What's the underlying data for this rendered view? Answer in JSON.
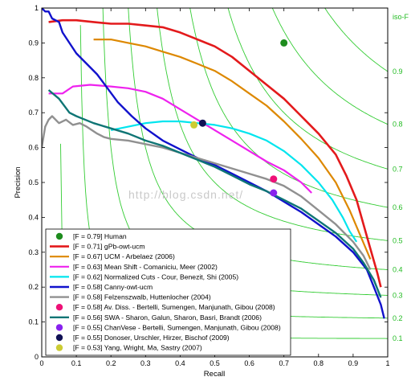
{
  "chart_data": {
    "type": "line",
    "xlabel": "Recall",
    "ylabel": "Precision",
    "xlim": [
      0,
      1
    ],
    "ylim": [
      0,
      1
    ],
    "xticks": [
      "0",
      "0.1",
      "0.2",
      "0.3",
      "0.4",
      "0.5",
      "0.6",
      "0.7",
      "0.8",
      "0.9",
      "1"
    ],
    "yticks": [
      "0",
      "0.1",
      "0.2",
      "0.3",
      "0.4",
      "0.5",
      "0.6",
      "0.7",
      "0.8",
      "0.9",
      "1"
    ],
    "grid": false,
    "legend_position": "bottom-left",
    "iso_title": "iso-F",
    "iso_f": [
      {
        "f": 0.1,
        "label": "0.1"
      },
      {
        "f": 0.2,
        "label": "0.2"
      },
      {
        "f": 0.3,
        "label": "0.3"
      },
      {
        "f": 0.4,
        "label": "0.4"
      },
      {
        "f": 0.5,
        "label": "0.5"
      },
      {
        "f": 0.6,
        "label": "0.6"
      },
      {
        "f": 0.7,
        "label": "0.7"
      },
      {
        "f": 0.8,
        "label": "0.8"
      },
      {
        "f": 0.9,
        "label": "0.9"
      }
    ],
    "watermark": "http://blog.csdn.net/",
    "series": [
      {
        "name": "[F = 0.79] Human",
        "kind": "point",
        "color": "#1e8c1e",
        "points": [
          [
            0.7,
            0.9
          ]
        ]
      },
      {
        "name": "[F = 0.71] gPb-owt-ucm",
        "kind": "line",
        "color": "#e31a1c",
        "width": 2.6,
        "points": [
          [
            0.02,
            0.96
          ],
          [
            0.06,
            0.965
          ],
          [
            0.1,
            0.965
          ],
          [
            0.15,
            0.96
          ],
          [
            0.2,
            0.955
          ],
          [
            0.25,
            0.955
          ],
          [
            0.3,
            0.95
          ],
          [
            0.35,
            0.945
          ],
          [
            0.4,
            0.93
          ],
          [
            0.45,
            0.91
          ],
          [
            0.5,
            0.89
          ],
          [
            0.55,
            0.86
          ],
          [
            0.6,
            0.82
          ],
          [
            0.65,
            0.78
          ],
          [
            0.7,
            0.74
          ],
          [
            0.75,
            0.69
          ],
          [
            0.8,
            0.64
          ],
          [
            0.85,
            0.58
          ],
          [
            0.88,
            0.52
          ],
          [
            0.91,
            0.45
          ],
          [
            0.93,
            0.38
          ],
          [
            0.95,
            0.31
          ],
          [
            0.97,
            0.24
          ],
          [
            0.98,
            0.2
          ]
        ]
      },
      {
        "name": "[F = 0.67] UCM - Arbelaez (2006)",
        "kind": "line",
        "color": "#dd8800",
        "width": 2.2,
        "points": [
          [
            0.15,
            0.91
          ],
          [
            0.2,
            0.91
          ],
          [
            0.25,
            0.9
          ],
          [
            0.3,
            0.89
          ],
          [
            0.35,
            0.875
          ],
          [
            0.4,
            0.86
          ],
          [
            0.45,
            0.84
          ],
          [
            0.5,
            0.82
          ],
          [
            0.55,
            0.79
          ],
          [
            0.6,
            0.755
          ],
          [
            0.65,
            0.72
          ],
          [
            0.7,
            0.675
          ],
          [
            0.75,
            0.625
          ],
          [
            0.8,
            0.57
          ],
          [
            0.85,
            0.5
          ],
          [
            0.89,
            0.42
          ],
          [
            0.92,
            0.35
          ],
          [
            0.95,
            0.28
          ]
        ]
      },
      {
        "name": "[F = 0.63] Mean Shift - Comaniciu, Meer (2002)",
        "kind": "line",
        "color": "#ee22ee",
        "width": 2.2,
        "points": [
          [
            0.02,
            0.755
          ],
          [
            0.06,
            0.755
          ],
          [
            0.09,
            0.775
          ],
          [
            0.14,
            0.78
          ],
          [
            0.2,
            0.775
          ],
          [
            0.25,
            0.77
          ],
          [
            0.3,
            0.76
          ],
          [
            0.35,
            0.74
          ],
          [
            0.4,
            0.71
          ],
          [
            0.45,
            0.68
          ],
          [
            0.5,
            0.65
          ],
          [
            0.55,
            0.62
          ],
          [
            0.6,
            0.59
          ],
          [
            0.65,
            0.56
          ],
          [
            0.7,
            0.535
          ],
          [
            0.75,
            0.5
          ],
          [
            0.78,
            0.47
          ]
        ]
      },
      {
        "name": "[F = 0.62] Normalized Cuts - Cour, Benezit, Shi (2005)",
        "kind": "line",
        "color": "#00e5ee",
        "width": 2.2,
        "points": [
          [
            0.2,
            0.65
          ],
          [
            0.25,
            0.66
          ],
          [
            0.3,
            0.67
          ],
          [
            0.35,
            0.675
          ],
          [
            0.4,
            0.675
          ],
          [
            0.45,
            0.67
          ],
          [
            0.5,
            0.665
          ],
          [
            0.55,
            0.655
          ],
          [
            0.6,
            0.64
          ],
          [
            0.65,
            0.62
          ],
          [
            0.7,
            0.59
          ],
          [
            0.75,
            0.55
          ],
          [
            0.8,
            0.5
          ],
          [
            0.84,
            0.45
          ],
          [
            0.87,
            0.4
          ],
          [
            0.89,
            0.36
          ],
          [
            0.91,
            0.33
          ]
        ]
      },
      {
        "name": "[F = 0.58] Canny-owt-ucm",
        "kind": "line",
        "color": "#1111cc",
        "width": 2.4,
        "points": [
          [
            0.0,
            1.0
          ],
          [
            0.01,
            0.99
          ],
          [
            0.02,
            0.99
          ],
          [
            0.03,
            0.97
          ],
          [
            0.05,
            0.96
          ],
          [
            0.06,
            0.93
          ],
          [
            0.08,
            0.9
          ],
          [
            0.1,
            0.87
          ],
          [
            0.13,
            0.84
          ],
          [
            0.16,
            0.81
          ],
          [
            0.19,
            0.77
          ],
          [
            0.22,
            0.73
          ],
          [
            0.26,
            0.69
          ],
          [
            0.3,
            0.655
          ],
          [
            0.35,
            0.62
          ],
          [
            0.4,
            0.595
          ],
          [
            0.45,
            0.57
          ],
          [
            0.5,
            0.55
          ],
          [
            0.55,
            0.525
          ],
          [
            0.6,
            0.5
          ],
          [
            0.65,
            0.475
          ],
          [
            0.7,
            0.445
          ],
          [
            0.75,
            0.415
          ],
          [
            0.8,
            0.38
          ],
          [
            0.85,
            0.345
          ],
          [
            0.9,
            0.3
          ],
          [
            0.94,
            0.25
          ],
          [
            0.96,
            0.2
          ],
          [
            0.98,
            0.15
          ],
          [
            0.99,
            0.11
          ]
        ]
      },
      {
        "name": "[F = 0.58] Felzenszwalb, Huttenlocher (2004)",
        "kind": "line",
        "color": "#909090",
        "width": 2.4,
        "points": [
          [
            0.0,
            0.6
          ],
          [
            0.01,
            0.66
          ],
          [
            0.02,
            0.68
          ],
          [
            0.03,
            0.69
          ],
          [
            0.05,
            0.67
          ],
          [
            0.07,
            0.68
          ],
          [
            0.09,
            0.665
          ],
          [
            0.11,
            0.67
          ],
          [
            0.13,
            0.66
          ],
          [
            0.16,
            0.64
          ],
          [
            0.18,
            0.63
          ],
          [
            0.2,
            0.625
          ],
          [
            0.25,
            0.62
          ],
          [
            0.3,
            0.61
          ],
          [
            0.35,
            0.6
          ],
          [
            0.4,
            0.585
          ],
          [
            0.45,
            0.57
          ],
          [
            0.5,
            0.555
          ],
          [
            0.55,
            0.54
          ],
          [
            0.6,
            0.525
          ],
          [
            0.65,
            0.51
          ],
          [
            0.7,
            0.49
          ],
          [
            0.75,
            0.46
          ],
          [
            0.8,
            0.42
          ],
          [
            0.85,
            0.38
          ],
          [
            0.9,
            0.33
          ],
          [
            0.93,
            0.29
          ],
          [
            0.95,
            0.25
          ]
        ]
      },
      {
        "name": "[F = 0.58] Av. Diss. - Bertelli, Sumengen, Manjunath, Gibou (2008)",
        "kind": "point",
        "color": "#ee1177",
        "points": [
          [
            0.67,
            0.51
          ]
        ]
      },
      {
        "name": "[F = 0.56] SWA - Sharon, Galun, Sharon, Basri, Brandt (2006)",
        "kind": "line",
        "color": "#0f7575",
        "width": 2.4,
        "points": [
          [
            0.02,
            0.765
          ],
          [
            0.05,
            0.74
          ],
          [
            0.08,
            0.7
          ],
          [
            0.1,
            0.69
          ],
          [
            0.15,
            0.67
          ],
          [
            0.2,
            0.655
          ],
          [
            0.25,
            0.64
          ],
          [
            0.3,
            0.62
          ],
          [
            0.35,
            0.605
          ],
          [
            0.4,
            0.585
          ],
          [
            0.45,
            0.565
          ],
          [
            0.5,
            0.545
          ],
          [
            0.55,
            0.52
          ],
          [
            0.6,
            0.495
          ],
          [
            0.65,
            0.475
          ],
          [
            0.7,
            0.45
          ],
          [
            0.75,
            0.425
          ],
          [
            0.8,
            0.39
          ],
          [
            0.85,
            0.355
          ],
          [
            0.9,
            0.31
          ],
          [
            0.93,
            0.27
          ],
          [
            0.96,
            0.22
          ],
          [
            0.98,
            0.17
          ]
        ]
      },
      {
        "name": "[F = 0.55] ChanVese - Bertelli, Sumengen, Manjunath, Gibou (2008)",
        "kind": "point",
        "color": "#8822ee",
        "points": [
          [
            0.67,
            0.47
          ]
        ]
      },
      {
        "name": "[F = 0.55] Donoser, Urschler, Hirzer, Bischof (2009)",
        "kind": "point",
        "color": "#111155",
        "points": [
          [
            0.465,
            0.67
          ]
        ]
      },
      {
        "name": "[F = 0.53] Yang, Wright, Ma, Sastry (2007)",
        "kind": "point",
        "color": "#cccc33",
        "points": [
          [
            0.44,
            0.665
          ]
        ]
      }
    ]
  }
}
